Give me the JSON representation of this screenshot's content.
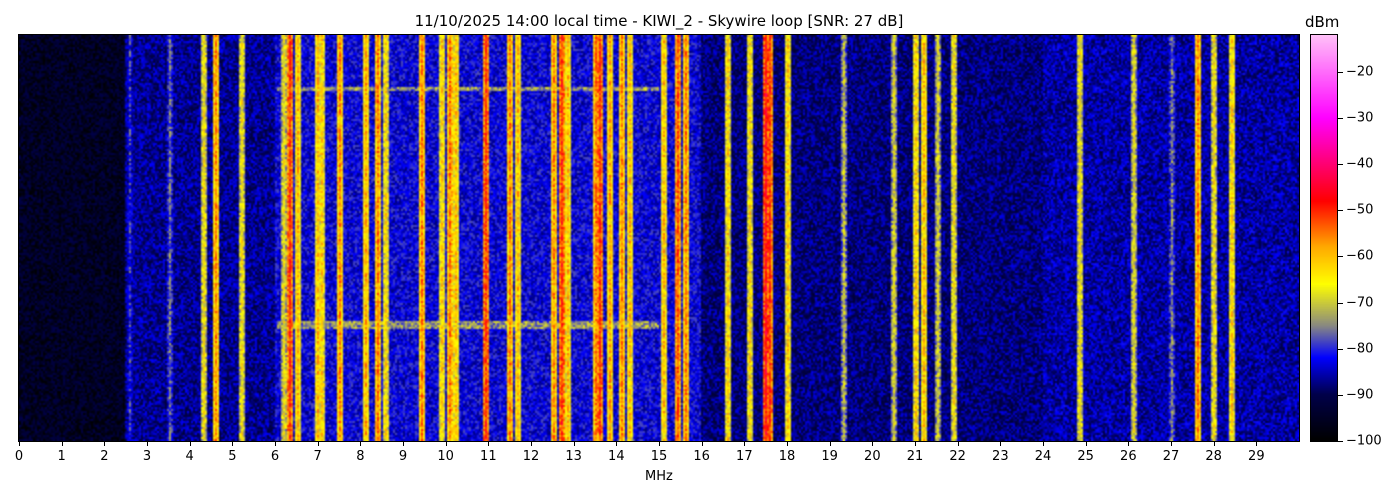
{
  "chart_data": {
    "type": "heatmap",
    "title": "11/10/2025 14:00 local time - KIWI_2 - Skywire loop [SNR: 27 dB]",
    "xlabel": "MHz",
    "xlim": [
      0,
      30
    ],
    "xticks": [
      0,
      1,
      2,
      3,
      4,
      5,
      6,
      7,
      8,
      9,
      10,
      11,
      12,
      13,
      14,
      15,
      16,
      17,
      18,
      19,
      20,
      21,
      22,
      23,
      24,
      25,
      26,
      27,
      28,
      29
    ],
    "colorbar": {
      "label": "dBm",
      "range": [
        -100,
        -12
      ],
      "ticks": [
        -20,
        -30,
        -40,
        -50,
        -60,
        -70,
        -80,
        -90,
        -100
      ],
      "colormap": [
        {
          "v": -100,
          "color": "#000000"
        },
        {
          "v": -90,
          "color": "#00004a"
        },
        {
          "v": -82,
          "color": "#0000ff"
        },
        {
          "v": -75,
          "color": "#8a8a80"
        },
        {
          "v": -66,
          "color": "#ffff00"
        },
        {
          "v": -58,
          "color": "#ffaa00"
        },
        {
          "v": -48,
          "color": "#ff0000"
        },
        {
          "v": -30,
          "color": "#ff00ff"
        },
        {
          "v": -12,
          "color": "#ffc0f8"
        }
      ]
    },
    "noise_floor_dBm": [
      {
        "from": 0,
        "to": 2.5,
        "level": -95
      },
      {
        "from": 2.5,
        "to": 6,
        "level": -87
      },
      {
        "from": 6,
        "to": 16,
        "level": -83
      },
      {
        "from": 16,
        "to": 24,
        "level": -88
      },
      {
        "from": 24,
        "to": 30,
        "level": -86
      }
    ],
    "signals_MHz_dBm": [
      [
        2.6,
        -80
      ],
      [
        3.5,
        -76
      ],
      [
        4.3,
        -65
      ],
      [
        4.6,
        -56
      ],
      [
        5.2,
        -65
      ],
      [
        6.2,
        -66
      ],
      [
        6.35,
        -50
      ],
      [
        6.5,
        -60
      ],
      [
        7.0,
        -60
      ],
      [
        7.1,
        -62
      ],
      [
        7.5,
        -56
      ],
      [
        8.1,
        -58
      ],
      [
        8.4,
        -55
      ],
      [
        8.6,
        -63
      ],
      [
        9.4,
        -55
      ],
      [
        9.9,
        -62
      ],
      [
        10.1,
        -55
      ],
      [
        10.2,
        -60
      ],
      [
        10.9,
        -50
      ],
      [
        11.5,
        -55
      ],
      [
        11.65,
        -60
      ],
      [
        12.5,
        -56
      ],
      [
        12.7,
        -50
      ],
      [
        12.85,
        -60
      ],
      [
        13.5,
        -55
      ],
      [
        13.6,
        -50
      ],
      [
        13.85,
        -58
      ],
      [
        14.1,
        -56
      ],
      [
        14.3,
        -60
      ],
      [
        15.1,
        -60
      ],
      [
        15.4,
        -52
      ],
      [
        15.6,
        -55
      ],
      [
        16.6,
        -62
      ],
      [
        17.1,
        -63
      ],
      [
        17.5,
        -47
      ],
      [
        17.6,
        -50
      ],
      [
        18.0,
        -62
      ],
      [
        19.3,
        -70
      ],
      [
        20.5,
        -68
      ],
      [
        21.0,
        -62
      ],
      [
        21.2,
        -60
      ],
      [
        21.5,
        -68
      ],
      [
        21.9,
        -65
      ],
      [
        24.85,
        -65
      ],
      [
        26.1,
        -67
      ],
      [
        27.0,
        -75
      ],
      [
        27.6,
        -55
      ],
      [
        28.0,
        -65
      ],
      [
        28.4,
        -62
      ]
    ]
  }
}
